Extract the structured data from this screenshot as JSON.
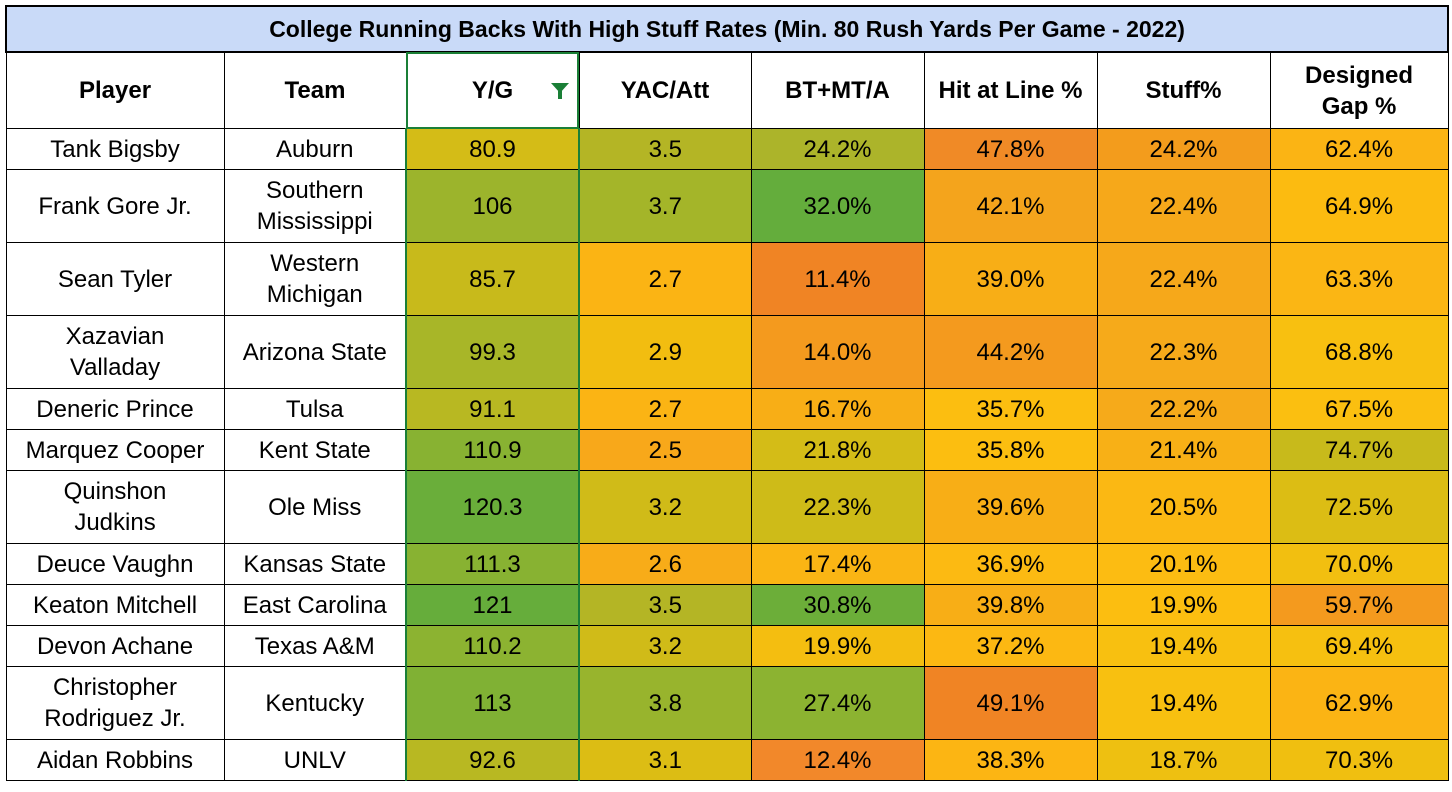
{
  "title": "College Running Backs With High Stuff Rates (Min. 80 Rush Yards Per Game - 2022)",
  "columns": [
    "Player",
    "Team",
    "Y/G",
    "YAC/Att",
    "BT+MT/A",
    "Hit at Line %",
    "Stuff%",
    "Designed Gap %"
  ],
  "sort_filter_column": "Y/G",
  "filter_icon": "filter-funnel-icon",
  "rows": [
    {
      "player": [
        "Tank Bigsby"
      ],
      "team": [
        "Auburn"
      ],
      "yg": "80.9",
      "yac": "3.5",
      "btmt": "24.2%",
      "hit": "47.8%",
      "stuff": "24.2%",
      "gap": "62.4%",
      "colors": {
        "yg": "#d4bc17",
        "yac": "#b4b525",
        "btmt": "#acb42a",
        "hit": "#f08a26",
        "stuff": "#f39c1c",
        "gap": "#fbb414"
      }
    },
    {
      "player": [
        "Frank Gore Jr."
      ],
      "team": [
        "Southern",
        "Mississippi"
      ],
      "yg": "106",
      "yac": "3.7",
      "btmt": "32.0%",
      "hit": "42.1%",
      "stuff": "22.4%",
      "gap": "64.9%",
      "colors": {
        "yg": "#9cb42c",
        "yac": "#a4b529",
        "btmt": "#64ad3c",
        "hit": "#f4a41c",
        "stuff": "#f6a81a",
        "gap": "#fcbb10"
      }
    },
    {
      "player": [
        "Sean Tyler"
      ],
      "team": [
        "Western",
        "Michigan"
      ],
      "yg": "85.7",
      "yac": "2.7",
      "btmt": "11.4%",
      "hit": "39.0%",
      "stuff": "22.4%",
      "gap": "63.3%",
      "colors": {
        "yg": "#c8ba1b",
        "yac": "#fbb414",
        "btmt": "#f08424",
        "hit": "#f8ae16",
        "stuff": "#f6a81a",
        "gap": "#fbb614"
      }
    },
    {
      "player": [
        "Xazavian",
        "Valladay"
      ],
      "team": [
        "Arizona State"
      ],
      "yg": "99.3",
      "yac": "2.9",
      "btmt": "14.0%",
      "hit": "44.2%",
      "stuff": "22.3%",
      "gap": "68.8%",
      "colors": {
        "yg": "#a8b628",
        "yac": "#f2bd10",
        "btmt": "#f49a1e",
        "hit": "#f49a1e",
        "stuff": "#f6aa1a",
        "gap": "#f8c010"
      }
    },
    {
      "player": [
        "Deneric Prince"
      ],
      "team": [
        "Tulsa"
      ],
      "yg": "91.1",
      "yac": "2.7",
      "btmt": "16.7%",
      "hit": "35.7%",
      "stuff": "22.2%",
      "gap": "67.5%",
      "colors": {
        "yg": "#b8b822",
        "yac": "#fbb414",
        "btmt": "#f8ae16",
        "hit": "#fcbe10",
        "stuff": "#f6aa1a",
        "gap": "#fbbf10"
      }
    },
    {
      "player": [
        "Marquez Cooper"
      ],
      "team": [
        "Kent State"
      ],
      "yg": "110.9",
      "yac": "2.5",
      "btmt": "21.8%",
      "hit": "35.8%",
      "stuff": "21.4%",
      "gap": "74.7%",
      "colors": {
        "yg": "#88b232",
        "yac": "#f8a81a",
        "btmt": "#d4bc17",
        "hit": "#fcbe10",
        "stuff": "#f8b016",
        "gap": "#c8ba1b"
      }
    },
    {
      "player": [
        "Quinshon",
        "Judkins"
      ],
      "team": [
        "Ole Miss"
      ],
      "yg": "120.3",
      "yac": "3.2",
      "btmt": "22.3%",
      "hit": "39.6%",
      "stuff": "20.5%",
      "gap": "72.5%",
      "colors": {
        "yg": "#6aae3a",
        "yac": "#d0bb18",
        "btmt": "#cebb18",
        "hit": "#f8ae16",
        "stuff": "#fbb813",
        "gap": "#dcbd14"
      }
    },
    {
      "player": [
        "Deuce Vaughn"
      ],
      "team": [
        "Kansas State"
      ],
      "yg": "111.3",
      "yac": "2.6",
      "btmt": "17.4%",
      "hit": "36.9%",
      "stuff": "20.1%",
      "gap": "70.0%",
      "colors": {
        "yg": "#88b232",
        "yac": "#f8ac18",
        "btmt": "#fab514",
        "hit": "#fcba12",
        "stuff": "#fcbc12",
        "gap": "#f2bf10"
      }
    },
    {
      "player": [
        "Keaton Mitchell"
      ],
      "team": [
        "East Carolina"
      ],
      "yg": "121",
      "yac": "3.5",
      "btmt": "30.8%",
      "hit": "39.8%",
      "stuff": "19.9%",
      "gap": "59.7%",
      "colors": {
        "yg": "#66ad3b",
        "yac": "#b4b525",
        "btmt": "#6cae39",
        "hit": "#f8ae16",
        "stuff": "#fcbe10",
        "gap": "#f49a1e"
      }
    },
    {
      "player": [
        "Devon Achane"
      ],
      "team": [
        "Texas A&M"
      ],
      "yg": "110.2",
      "yac": "3.2",
      "btmt": "19.9%",
      "hit": "37.2%",
      "stuff": "19.4%",
      "gap": "69.4%",
      "colors": {
        "yg": "#8cb331",
        "yac": "#d0bb18",
        "btmt": "#f4be10",
        "hit": "#fcb812",
        "stuff": "#f8c010",
        "gap": "#f6c010"
      }
    },
    {
      "player": [
        "Christopher",
        "Rodriguez Jr."
      ],
      "team": [
        "Kentucky"
      ],
      "yg": "113",
      "yac": "3.8",
      "btmt": "27.4%",
      "hit": "49.1%",
      "stuff": "19.4%",
      "gap": "62.9%",
      "colors": {
        "yg": "#80b134",
        "yac": "#98b42d",
        "btmt": "#8cb331",
        "hit": "#f08424",
        "stuff": "#f8c010",
        "gap": "#fbb414"
      }
    },
    {
      "player": [
        "Aidan Robbins"
      ],
      "team": [
        "UNLV"
      ],
      "yg": "92.6",
      "yac": "3.1",
      "btmt": "12.4%",
      "hit": "38.3%",
      "stuff": "18.7%",
      "gap": "70.3%",
      "colors": {
        "yg": "#b8b822",
        "yac": "#dcbd14",
        "btmt": "#f2882a",
        "hit": "#fcb513",
        "stuff": "#eec011",
        "gap": "#f0bf10"
      }
    }
  ]
}
